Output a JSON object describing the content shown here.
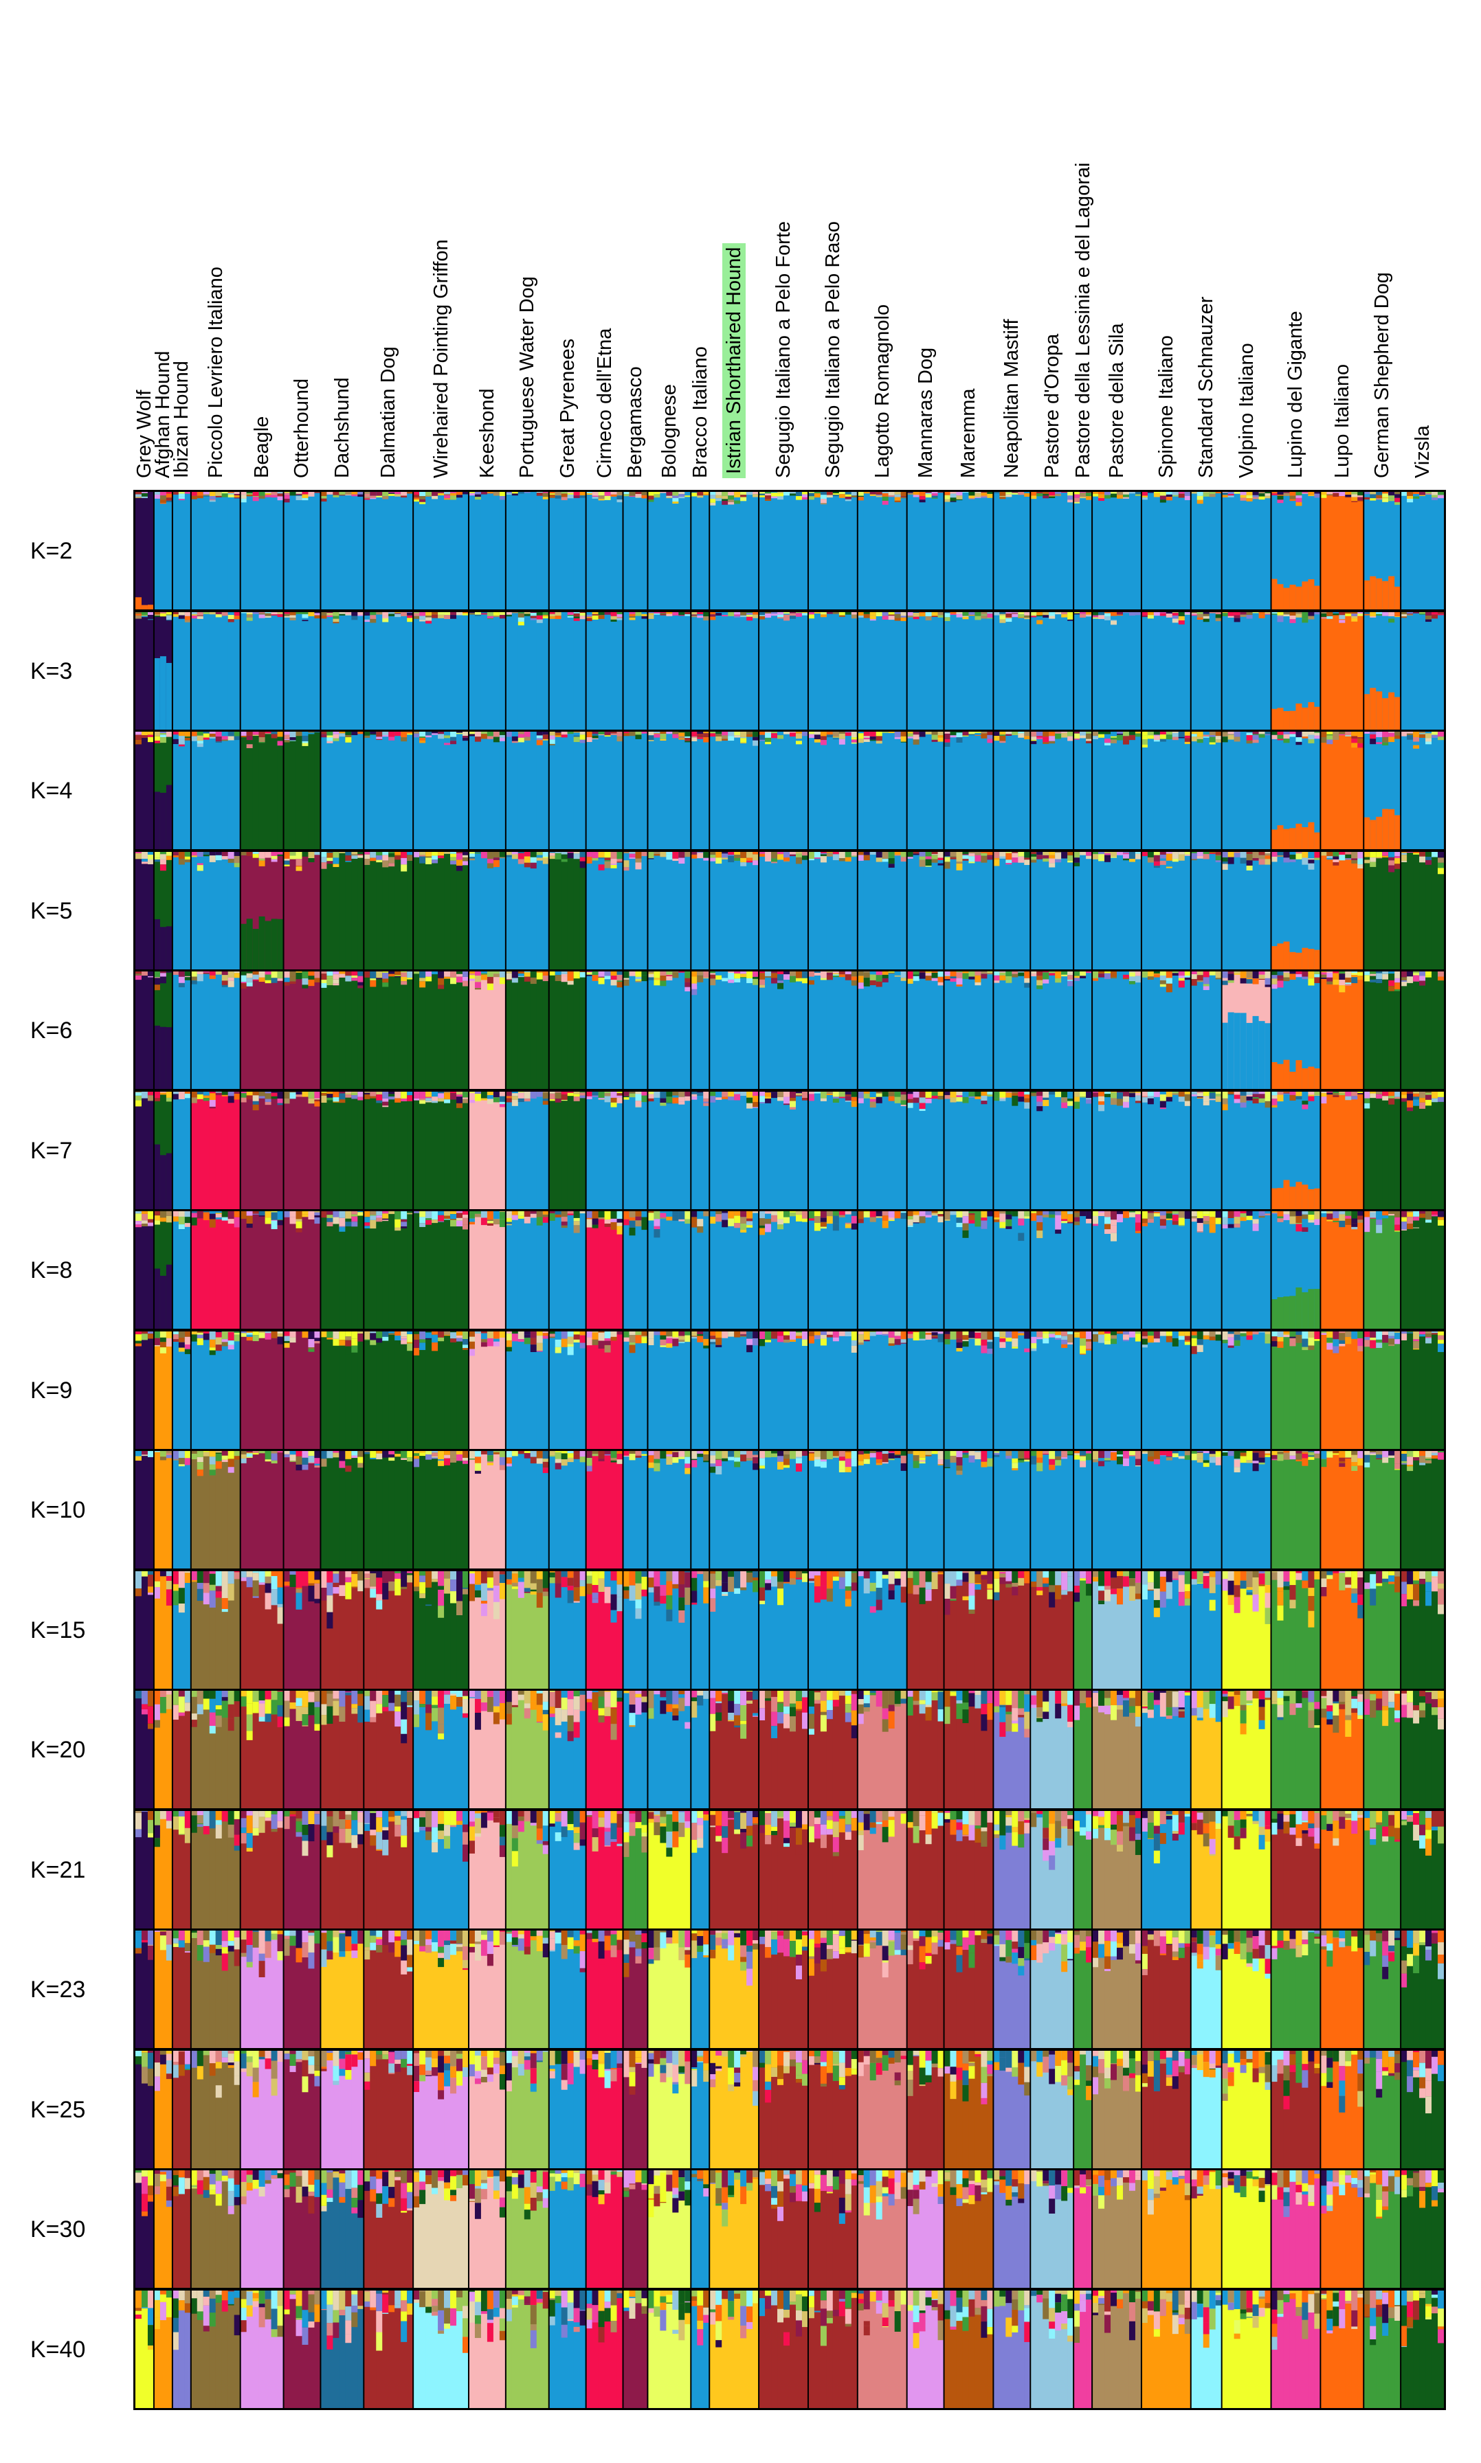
{
  "chart_data": {
    "type": "structure-admixture-barplot",
    "title": "",
    "xlabel": "",
    "ylabel": "",
    "ylim": [
      0,
      1
    ],
    "breeds": [
      {
        "name": "Grey Wolf",
        "n": 3
      },
      {
        "name": "Afghan Hound",
        "n": 3
      },
      {
        "name": "Ibizan Hound",
        "n": 3
      },
      {
        "name": "Piccolo Levriero Italiano",
        "n": 8
      },
      {
        "name": "Beagle",
        "n": 7
      },
      {
        "name": "Otterhound",
        "n": 6
      },
      {
        "name": "Dachshund",
        "n": 7
      },
      {
        "name": "Dalmatian Dog",
        "n": 8
      },
      {
        "name": "Wirehaired Pointing Griffon",
        "n": 9
      },
      {
        "name": "Keeshond",
        "n": 6
      },
      {
        "name": "Portuguese Water Dog",
        "n": 7
      },
      {
        "name": "Great Pyrenees",
        "n": 6
      },
      {
        "name": "Cirneco dell'Etna",
        "n": 6
      },
      {
        "name": "Bergamasco",
        "n": 4
      },
      {
        "name": "Bolognese",
        "n": 7
      },
      {
        "name": "Bracco Italiano",
        "n": 3
      },
      {
        "name": "Istrian Shorthaired Hound",
        "n": 8,
        "highlighted": true
      },
      {
        "name": "Segugio Italiano a Pelo Forte",
        "n": 8
      },
      {
        "name": "Segugio Italiano a Pelo Raso",
        "n": 8
      },
      {
        "name": "Lagotto Romagnolo",
        "n": 8
      },
      {
        "name": "Mannaras Dog",
        "n": 6
      },
      {
        "name": "Maremma",
        "n": 8
      },
      {
        "name": "Neapolitan Mastiff",
        "n": 6
      },
      {
        "name": "Pastore d'Oropa",
        "n": 7
      },
      {
        "name": "Pastore della Lessinia e del Lagorai",
        "n": 3
      },
      {
        "name": "Pastore della Sila",
        "n": 8
      },
      {
        "name": "Spinone Italiano",
        "n": 8
      },
      {
        "name": "Standard Schnauzer",
        "n": 5
      },
      {
        "name": "Volpino Italiano",
        "n": 8
      },
      {
        "name": "Lupino del Gigante",
        "n": 8
      },
      {
        "name": "Lupo Italiano",
        "n": 7
      },
      {
        "name": "German Shepherd Dog",
        "n": 6
      },
      {
        "name": "Vizsla",
        "n": 7
      }
    ],
    "palette": {
      "wolf": "#2a0a4e",
      "main_blue": "#1a9ad7",
      "orange": "#ff6a0d",
      "dark_green": "#0f5c18",
      "maroon": "#8e1a4a",
      "pink_light": "#f9b6b8",
      "red": "#f5104f",
      "amber": "#ff9a0a",
      "olive_brown": "#8a7137",
      "brick": "#a52a2a",
      "yellow_green": "#9ccb58",
      "yellow_bright": "#f0ff2a",
      "lavender": "#e196ef",
      "gold": "#ffc81e",
      "steel_blue": "#1f6e9a",
      "salmon": "#e08282",
      "light_blue": "#92c7e0",
      "mid_green": "#3d9e3a",
      "tan": "#ad8d5c",
      "cyan_light": "#8df4ff",
      "cream": "#e6d6b4",
      "rust": "#b8560d",
      "hot_pink": "#f03fa0",
      "lime_yellow": "#e8ff60",
      "slate": "#7f7fd6",
      "khaki": "#d8c46a"
    },
    "runs": [
      {
        "k": "K=2",
        "mix": 0.06,
        "assign": [
          "wolf:orange:0.05",
          "main_blue",
          "main_blue",
          "main_blue",
          "main_blue",
          "main_blue",
          "main_blue",
          "main_blue",
          "main_blue",
          "main_blue",
          "main_blue",
          "main_blue",
          "main_blue",
          "main_blue",
          "main_blue",
          "main_blue",
          "main_blue",
          "main_blue",
          "main_blue",
          "main_blue",
          "main_blue",
          "main_blue",
          "main_blue",
          "main_blue",
          "main_blue",
          "main_blue",
          "main_blue",
          "main_blue",
          "main_blue",
          "main_blue:orange:0.2",
          "orange",
          "main_blue:orange:0.25",
          "main_blue"
        ]
      },
      {
        "k": "K=3",
        "mix": 0.06,
        "assign": [
          "wolf",
          "wolf:main_blue:0.6",
          "main_blue",
          "main_blue",
          "main_blue",
          "main_blue",
          "main_blue",
          "main_blue",
          "main_blue",
          "main_blue",
          "main_blue",
          "main_blue",
          "main_blue",
          "main_blue",
          "main_blue",
          "main_blue",
          "main_blue",
          "main_blue",
          "main_blue",
          "main_blue",
          "main_blue",
          "main_blue",
          "main_blue",
          "main_blue",
          "main_blue",
          "main_blue",
          "main_blue",
          "main_blue",
          "main_blue",
          "main_blue:orange:0.2",
          "orange",
          "main_blue:orange:0.3",
          "main_blue"
        ]
      },
      {
        "k": "K=4",
        "mix": 0.08,
        "assign": [
          "wolf",
          "dark_green:wolf:0.5",
          "main_blue",
          "main_blue",
          "dark_green",
          "dark_green",
          "main_blue",
          "main_blue",
          "main_blue",
          "main_blue",
          "main_blue",
          "main_blue",
          "main_blue",
          "main_blue",
          "main_blue",
          "main_blue",
          "main_blue",
          "main_blue",
          "main_blue",
          "main_blue",
          "main_blue",
          "main_blue",
          "main_blue",
          "main_blue",
          "main_blue",
          "main_blue",
          "main_blue",
          "main_blue",
          "main_blue",
          "main_blue:orange:0.2",
          "orange",
          "main_blue:orange:0.3",
          "main_blue"
        ]
      },
      {
        "k": "K=5",
        "mix": 0.1,
        "assign": [
          "wolf",
          "dark_green:wolf:0.4",
          "main_blue",
          "main_blue",
          "maroon:dark_green:0.4",
          "maroon",
          "dark_green",
          "dark_green",
          "dark_green",
          "main_blue",
          "main_blue",
          "dark_green",
          "main_blue",
          "main_blue",
          "main_blue",
          "main_blue",
          "main_blue",
          "main_blue",
          "main_blue",
          "main_blue",
          "main_blue",
          "main_blue",
          "main_blue",
          "main_blue",
          "main_blue",
          "main_blue",
          "main_blue",
          "main_blue",
          "main_blue",
          "main_blue:orange:0.2",
          "orange",
          "dark_green",
          "dark_green"
        ]
      },
      {
        "k": "K=6",
        "mix": 0.1,
        "assign": [
          "wolf",
          "dark_green:wolf:0.5",
          "main_blue",
          "main_blue",
          "maroon",
          "maroon",
          "dark_green",
          "dark_green",
          "dark_green",
          "pink_light",
          "dark_green",
          "dark_green",
          "main_blue",
          "main_blue",
          "main_blue",
          "main_blue",
          "main_blue",
          "main_blue",
          "main_blue",
          "main_blue",
          "main_blue",
          "main_blue",
          "main_blue",
          "main_blue",
          "main_blue",
          "main_blue",
          "main_blue",
          "main_blue",
          "pink_light:main_blue:0.6",
          "main_blue:orange:0.2",
          "orange",
          "dark_green",
          "dark_green"
        ]
      },
      {
        "k": "K=7",
        "mix": 0.1,
        "assign": [
          "wolf",
          "dark_green:wolf:0.5",
          "main_blue",
          "red",
          "maroon",
          "maroon",
          "dark_green",
          "dark_green",
          "dark_green",
          "pink_light",
          "main_blue",
          "dark_green",
          "main_blue",
          "main_blue",
          "main_blue",
          "main_blue",
          "main_blue",
          "main_blue",
          "main_blue",
          "main_blue",
          "main_blue",
          "main_blue",
          "main_blue",
          "main_blue",
          "main_blue",
          "main_blue",
          "main_blue",
          "main_blue",
          "main_blue",
          "main_blue:orange:0.2",
          "orange",
          "dark_green",
          "dark_green"
        ]
      },
      {
        "k": "K=8",
        "mix": 0.12,
        "assign": [
          "wolf",
          "dark_green:wolf:0.5",
          "main_blue",
          "red",
          "maroon",
          "maroon",
          "dark_green",
          "dark_green",
          "dark_green",
          "pink_light",
          "main_blue",
          "main_blue",
          "red",
          "main_blue",
          "main_blue",
          "main_blue",
          "main_blue",
          "main_blue",
          "main_blue",
          "main_blue",
          "main_blue",
          "main_blue",
          "main_blue",
          "main_blue",
          "main_blue",
          "main_blue",
          "main_blue",
          "main_blue",
          "main_blue",
          "main_blue:mid_green:0.3",
          "orange",
          "mid_green",
          "dark_green"
        ]
      },
      {
        "k": "K=9",
        "mix": 0.12,
        "assign": [
          "wolf",
          "amber",
          "main_blue",
          "main_blue",
          "maroon",
          "maroon",
          "dark_green",
          "dark_green",
          "dark_green",
          "pink_light",
          "main_blue",
          "main_blue",
          "red",
          "main_blue",
          "main_blue",
          "main_blue",
          "main_blue",
          "main_blue",
          "main_blue",
          "main_blue",
          "main_blue",
          "main_blue",
          "main_blue",
          "main_blue",
          "main_blue",
          "main_blue",
          "main_blue",
          "main_blue",
          "main_blue",
          "mid_green",
          "orange",
          "mid_green",
          "dark_green"
        ]
      },
      {
        "k": "K=10",
        "mix": 0.12,
        "assign": [
          "wolf",
          "amber",
          "main_blue",
          "olive_brown",
          "maroon",
          "maroon",
          "dark_green",
          "dark_green",
          "dark_green",
          "pink_light",
          "main_blue",
          "main_blue",
          "red",
          "main_blue",
          "main_blue",
          "main_blue",
          "main_blue",
          "main_blue",
          "main_blue",
          "main_blue",
          "main_blue",
          "main_blue",
          "main_blue",
          "main_blue",
          "main_blue",
          "main_blue",
          "main_blue",
          "main_blue",
          "main_blue",
          "mid_green",
          "orange",
          "mid_green",
          "dark_green"
        ]
      },
      {
        "k": "K=15",
        "mix": 0.25,
        "assign": [
          "wolf",
          "amber",
          "main_blue",
          "olive_brown",
          "brick",
          "maroon",
          "brick",
          "brick",
          "dark_green",
          "pink_light",
          "yellow_green",
          "main_blue",
          "red",
          "main_blue",
          "main_blue",
          "main_blue",
          "main_blue",
          "main_blue",
          "main_blue",
          "main_blue",
          "brick",
          "brick",
          "brick",
          "brick",
          "mid_green",
          "light_blue",
          "main_blue",
          "main_blue",
          "yellow_bright",
          "mid_green",
          "orange",
          "mid_green",
          "dark_green"
        ]
      },
      {
        "k": "K=20",
        "mix": 0.25,
        "assign": [
          "wolf",
          "amber",
          "brick",
          "olive_brown",
          "brick",
          "maroon",
          "brick",
          "brick",
          "main_blue",
          "pink_light",
          "yellow_green",
          "main_blue",
          "red",
          "main_blue",
          "main_blue",
          "main_blue",
          "brick",
          "brick",
          "brick",
          "salmon",
          "brick",
          "brick",
          "slate",
          "light_blue",
          "mid_green",
          "tan",
          "main_blue",
          "gold",
          "yellow_bright",
          "mid_green",
          "orange",
          "mid_green",
          "dark_green"
        ]
      },
      {
        "k": "K=21",
        "mix": 0.25,
        "assign": [
          "wolf",
          "amber",
          "brick",
          "olive_brown",
          "brick",
          "maroon",
          "brick",
          "brick",
          "main_blue",
          "pink_light",
          "yellow_green",
          "main_blue",
          "red",
          "mid_green",
          "yellow_bright",
          "main_blue",
          "brick",
          "brick",
          "brick",
          "salmon",
          "brick",
          "brick",
          "slate",
          "light_blue",
          "mid_green",
          "tan",
          "main_blue",
          "gold",
          "yellow_bright",
          "brick",
          "orange",
          "mid_green",
          "dark_green"
        ]
      },
      {
        "k": "K=23",
        "mix": 0.25,
        "assign": [
          "wolf",
          "amber",
          "brick",
          "olive_brown",
          "lavender",
          "maroon",
          "gold",
          "brick",
          "gold",
          "pink_light",
          "yellow_green",
          "main_blue",
          "red",
          "maroon",
          "lime_yellow",
          "main_blue",
          "gold",
          "brick",
          "brick",
          "salmon",
          "brick",
          "brick",
          "slate",
          "light_blue",
          "mid_green",
          "tan",
          "brick",
          "cyan_light",
          "yellow_bright",
          "mid_green",
          "orange",
          "mid_green",
          "dark_green"
        ]
      },
      {
        "k": "K=25",
        "mix": 0.25,
        "assign": [
          "wolf",
          "amber",
          "brick",
          "olive_brown",
          "lavender",
          "maroon",
          "lavender",
          "brick",
          "lavender",
          "pink_light",
          "yellow_green",
          "main_blue",
          "red",
          "maroon",
          "lime_yellow",
          "main_blue",
          "gold",
          "brick",
          "brick",
          "salmon",
          "brick",
          "rust",
          "slate",
          "light_blue",
          "mid_green",
          "tan",
          "brick",
          "cyan_light",
          "yellow_bright",
          "brick",
          "orange",
          "mid_green",
          "dark_green"
        ]
      },
      {
        "k": "K=30",
        "mix": 0.25,
        "assign": [
          "wolf",
          "amber",
          "brick",
          "olive_brown",
          "lavender",
          "maroon",
          "steel_blue",
          "brick",
          "cream",
          "pink_light",
          "yellow_green",
          "main_blue",
          "red",
          "maroon",
          "lime_yellow",
          "main_blue",
          "gold",
          "brick",
          "brick",
          "salmon",
          "lavender",
          "rust",
          "slate",
          "light_blue",
          "hot_pink",
          "tan",
          "amber",
          "gold",
          "yellow_bright",
          "hot_pink",
          "orange",
          "mid_green",
          "dark_green"
        ]
      },
      {
        "k": "K=40",
        "mix": 0.3,
        "assign": [
          "yellow_bright",
          "amber",
          "slate",
          "olive_brown",
          "lavender",
          "maroon",
          "steel_blue",
          "brick",
          "cyan_light",
          "pink_light",
          "yellow_green",
          "main_blue",
          "red",
          "maroon",
          "lime_yellow",
          "main_blue",
          "gold",
          "brick",
          "brick",
          "salmon",
          "lavender",
          "rust",
          "slate",
          "light_blue",
          "hot_pink",
          "tan",
          "amber",
          "cyan_light",
          "yellow_bright",
          "hot_pink",
          "orange",
          "mid_green",
          "dark_green"
        ]
      }
    ]
  }
}
